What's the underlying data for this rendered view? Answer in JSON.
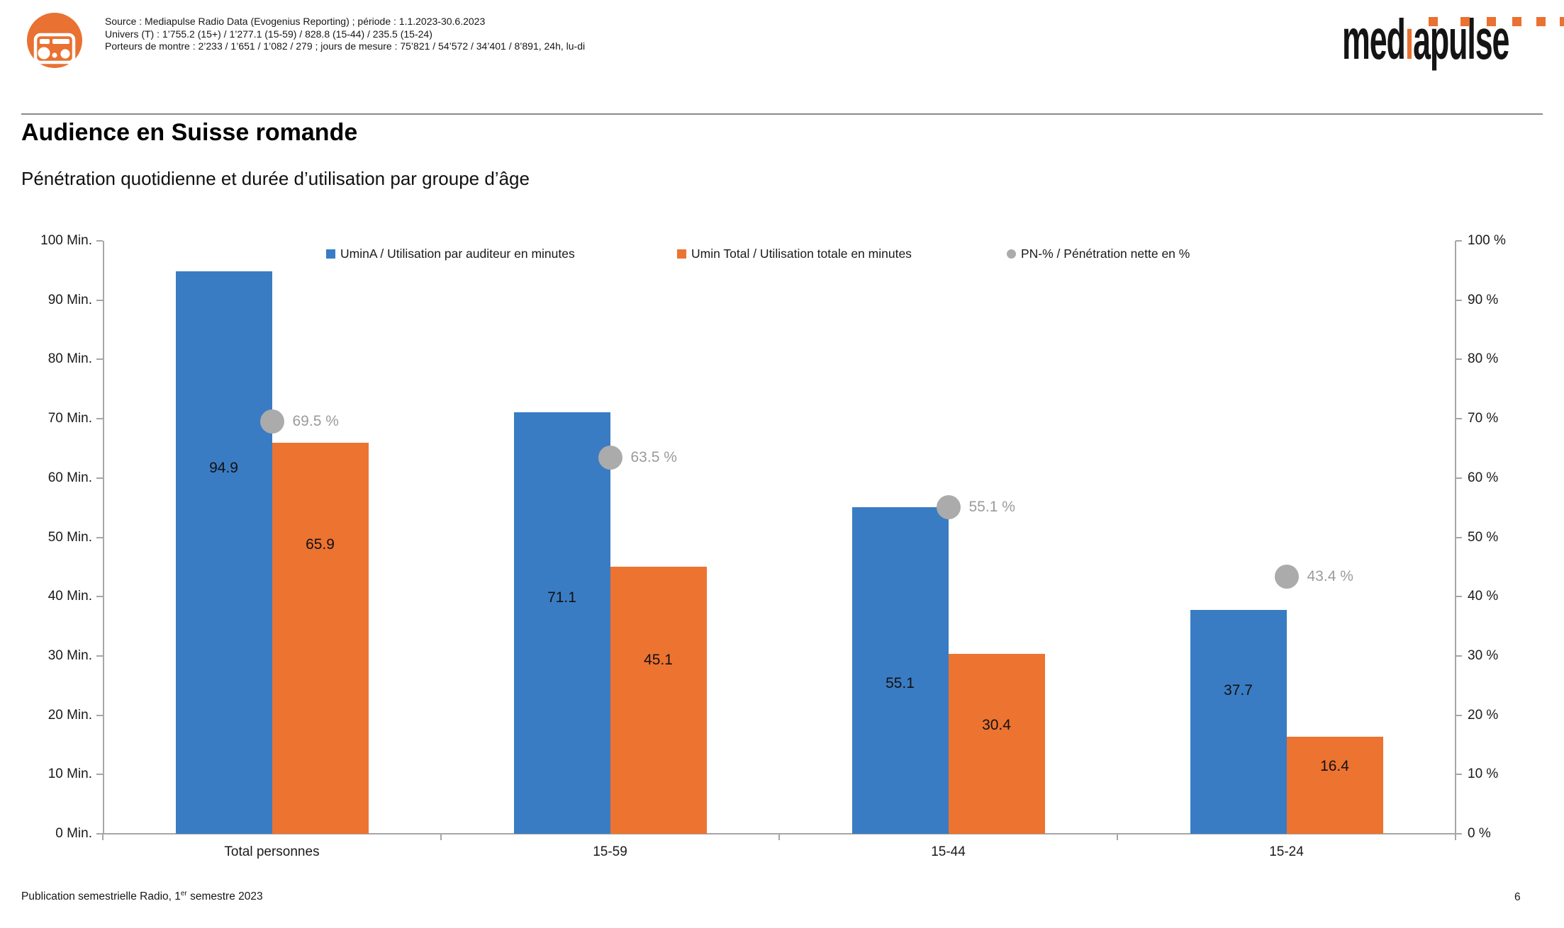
{
  "header": {
    "source_lines": [
      "Source : Mediapulse Radio Data (Evogenius Reporting) ; période : 1.1.2023-30.6.2023",
      "Univers (T) : 1’755.2 (15+) / 1’277.1 (15-59) / 828.8 (15-44) / 235.5 (15-24)",
      "Porteurs de montre : 2’233 / 1’651 / 1’082 / 279 ; jours de mesure : 75’821 / 54’572 / 34’401 / 8’891, 24h, lu-di"
    ],
    "logo": {
      "part1": "med",
      "part2": "ı",
      "part3": "apulse",
      "text_color": "#141414",
      "accent_color": "#E97132"
    }
  },
  "title": "Audience en Suisse romande",
  "subtitle": "Pénétration quotidienne et durée d’utilisation par groupe d’âge",
  "chart_data": {
    "type": "bar",
    "subtype": "grouped bars with overlaid points (dual axis)",
    "categories": [
      "Total personnes",
      "15-59",
      "15-44",
      "15-24"
    ],
    "series": [
      {
        "name": "UminA / Utilisation par auditeur en minutes",
        "type": "bar",
        "axis": "left",
        "color": "#3A7CC3",
        "values": [
          94.9,
          71.1,
          55.1,
          37.7
        ],
        "value_labels": [
          "94.9",
          "71.1",
          "55.1",
          "37.7"
        ]
      },
      {
        "name": "Umin Total / Utilisation totale en minutes",
        "type": "bar",
        "axis": "left",
        "color": "#ED7331",
        "values": [
          65.9,
          45.1,
          30.4,
          16.4
        ],
        "value_labels": [
          "65.9",
          "45.1",
          "30.4",
          "16.4"
        ]
      },
      {
        "name": "PN-% / Pénétration nette en %",
        "type": "point",
        "axis": "right",
        "color": "#ABABAB",
        "values": [
          69.5,
          63.5,
          55.1,
          43.4
        ],
        "value_labels": [
          "69.5 %",
          "63.5 %",
          "55.1 %",
          "43.4 %"
        ]
      }
    ],
    "left_axis": {
      "min": 0,
      "max": 100,
      "tick_step": 10,
      "tick_labels": [
        "0 Min.",
        "10 Min.",
        "20 Min.",
        "30 Min.",
        "40 Min.",
        "50 Min.",
        "60 Min.",
        "70 Min.",
        "80 Min.",
        "90 Min.",
        "100 Min."
      ]
    },
    "right_axis": {
      "min": 0,
      "max": 100,
      "tick_step": 10,
      "tick_labels": [
        "0 %",
        "10 %",
        "20 %",
        "30 %",
        "40 %",
        "50 %",
        "60 %",
        "70 %",
        "80 %",
        "90 %",
        "100 %"
      ]
    },
    "grid": false,
    "legend_position": "top"
  },
  "footer": {
    "note_pre": "Publication semestrielle Radio, 1",
    "note_sup": "er",
    "note_post": " semestre 2023",
    "page": "6"
  }
}
